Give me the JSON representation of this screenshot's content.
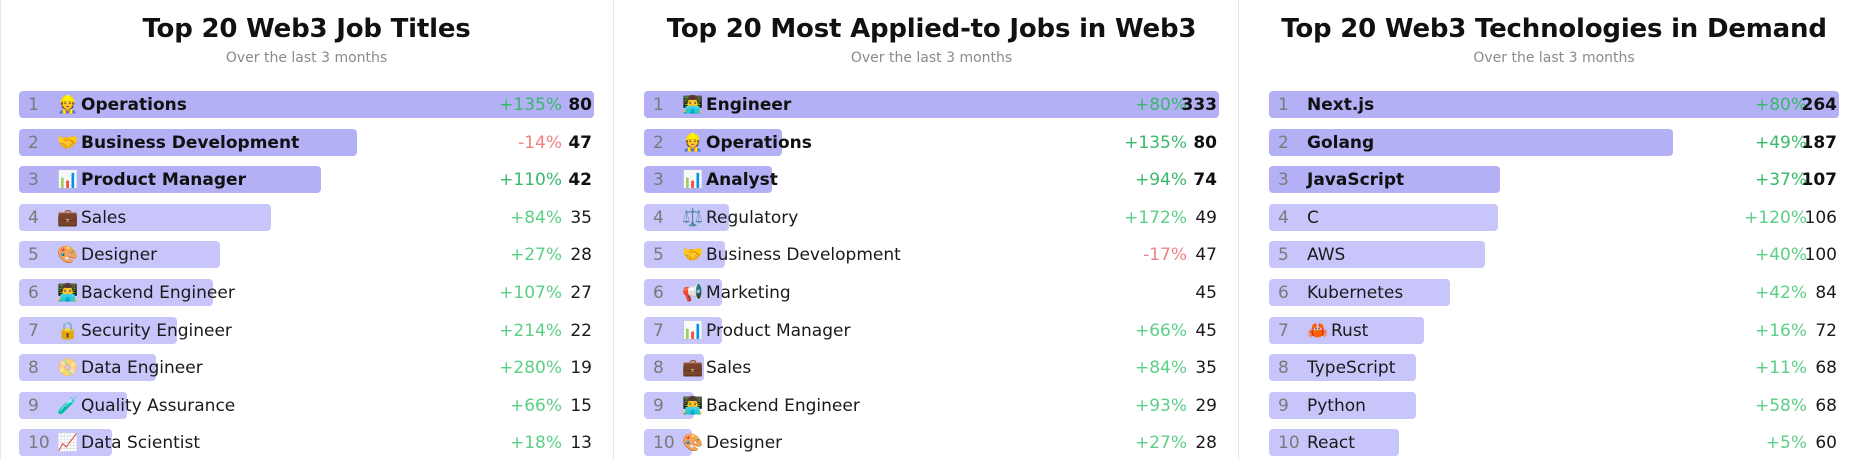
{
  "chart_data": [
    {
      "type": "bar",
      "title": "Top 20 Web3 Job Titles",
      "subtitle": "Over the last 3 months",
      "rows": [
        {
          "rank": "1",
          "icon": "worker-icon",
          "emoji": "👷",
          "label": "Operations",
          "change": "+135%",
          "value": 80,
          "trend": "pos"
        },
        {
          "rank": "2",
          "icon": "handshake-icon",
          "emoji": "🤝",
          "label": "Business Development",
          "change": "-14%",
          "value": 47,
          "trend": "neg"
        },
        {
          "rank": "3",
          "icon": "bar-chart-icon",
          "emoji": "📊",
          "label": "Product Manager",
          "change": "+110%",
          "value": 42,
          "trend": "pos"
        },
        {
          "rank": "4",
          "icon": "briefcase-icon",
          "emoji": "💼",
          "label": "Sales",
          "change": "+84%",
          "value": 35,
          "trend": "pos"
        },
        {
          "rank": "5",
          "icon": "palette-icon",
          "emoji": "🎨",
          "label": "Designer",
          "change": "+27%",
          "value": 28,
          "trend": "pos"
        },
        {
          "rank": "6",
          "icon": "technologist-icon",
          "emoji": "👨‍💻",
          "label": "Backend Engineer",
          "change": "+107%",
          "value": 27,
          "trend": "pos"
        },
        {
          "rank": "7",
          "icon": "lock-icon",
          "emoji": "🔒",
          "label": "Security Engineer",
          "change": "+214%",
          "value": 22,
          "trend": "pos"
        },
        {
          "rank": "8",
          "icon": "disk-icon",
          "emoji": "📀",
          "label": "Data Engineer",
          "change": "+280%",
          "value": 19,
          "trend": "pos"
        },
        {
          "rank": "9",
          "icon": "test-tube-icon",
          "emoji": "🧪",
          "label": "Quality Assurance",
          "change": "+66%",
          "value": 15,
          "trend": "pos"
        },
        {
          "rank": "10",
          "icon": "chart-increasing-icon",
          "emoji": "📈",
          "label": "Data Scientist",
          "change": "+18%",
          "value": 13,
          "trend": "pos"
        }
      ]
    },
    {
      "type": "bar",
      "title": "Top 20 Most Applied-to Jobs in Web3",
      "subtitle": "Over the last 3 months",
      "rows": [
        {
          "rank": "1",
          "icon": "technologist-icon",
          "emoji": "👨‍💻",
          "label": "Engineer",
          "change": "+80%",
          "value": 333,
          "trend": "pos"
        },
        {
          "rank": "2",
          "icon": "worker-icon",
          "emoji": "👷",
          "label": "Operations",
          "change": "+135%",
          "value": 80,
          "trend": "pos"
        },
        {
          "rank": "3",
          "icon": "bar-chart-icon",
          "emoji": "📊",
          "label": "Analyst",
          "change": "+94%",
          "value": 74,
          "trend": "pos"
        },
        {
          "rank": "4",
          "icon": "balance-scale-icon",
          "emoji": "⚖️",
          "label": "Regulatory",
          "change": "+172%",
          "value": 49,
          "trend": "pos"
        },
        {
          "rank": "5",
          "icon": "handshake-icon",
          "emoji": "🤝",
          "label": "Business Development",
          "change": "-17%",
          "value": 47,
          "trend": "neg"
        },
        {
          "rank": "6",
          "icon": "megaphone-icon",
          "emoji": "📢",
          "label": "Marketing",
          "change": "",
          "value": 45,
          "trend": "pos"
        },
        {
          "rank": "7",
          "icon": "bar-chart-icon",
          "emoji": "📊",
          "label": "Product Manager",
          "change": "+66%",
          "value": 45,
          "trend": "pos"
        },
        {
          "rank": "8",
          "icon": "briefcase-icon",
          "emoji": "💼",
          "label": "Sales",
          "change": "+84%",
          "value": 35,
          "trend": "pos"
        },
        {
          "rank": "9",
          "icon": "technologist-icon",
          "emoji": "👨‍💻",
          "label": "Backend Engineer",
          "change": "+93%",
          "value": 29,
          "trend": "pos"
        },
        {
          "rank": "10",
          "icon": "palette-icon",
          "emoji": "🎨",
          "label": "Designer",
          "change": "+27%",
          "value": 28,
          "trend": "pos"
        }
      ]
    },
    {
      "type": "bar",
      "title": "Top 20 Web3 Technologies in Demand",
      "subtitle": "Over the last 3 months",
      "rows": [
        {
          "rank": "1",
          "icon": "",
          "emoji": "",
          "label": "Next.js",
          "change": "+80%",
          "value": 264,
          "trend": "pos"
        },
        {
          "rank": "2",
          "icon": "",
          "emoji": "",
          "label": "Golang",
          "change": "+49%",
          "value": 187,
          "trend": "pos"
        },
        {
          "rank": "3",
          "icon": "",
          "emoji": "",
          "label": "JavaScript",
          "change": "+37%",
          "value": 107,
          "trend": "pos"
        },
        {
          "rank": "4",
          "icon": "",
          "emoji": "",
          "label": "C",
          "change": "+120%",
          "value": 106,
          "trend": "pos"
        },
        {
          "rank": "5",
          "icon": "",
          "emoji": "",
          "label": "AWS",
          "change": "+40%",
          "value": 100,
          "trend": "pos"
        },
        {
          "rank": "6",
          "icon": "",
          "emoji": "",
          "label": "Kubernetes",
          "change": "+42%",
          "value": 84,
          "trend": "pos"
        },
        {
          "rank": "7",
          "icon": "crab-icon",
          "emoji": "🦀",
          "label": "Rust",
          "change": "+16%",
          "value": 72,
          "trend": "pos"
        },
        {
          "rank": "8",
          "icon": "",
          "emoji": "",
          "label": "TypeScript",
          "change": "+11%",
          "value": 68,
          "trend": "pos"
        },
        {
          "rank": "9",
          "icon": "",
          "emoji": "",
          "label": "Python",
          "change": "+58%",
          "value": 68,
          "trend": "pos"
        },
        {
          "rank": "10",
          "icon": "",
          "emoji": "",
          "label": "React",
          "change": "+5%",
          "value": 60,
          "trend": "pos"
        }
      ]
    }
  ],
  "colors": {
    "bar_top": "#b3b0f6",
    "bar": "#c8c5fb",
    "positive": "#5ccf86",
    "negative": "#f08080"
  }
}
